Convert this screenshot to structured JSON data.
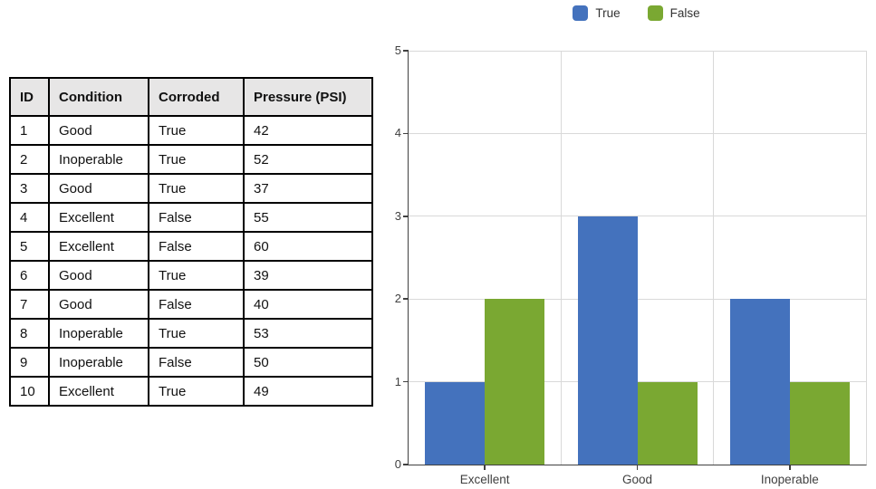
{
  "page": {
    "background": "#ffffff"
  },
  "table": {
    "headers": [
      "ID",
      "Condition",
      "Corroded",
      "Pressure (PSI)"
    ],
    "rows": [
      [
        "1",
        "Good",
        "True",
        "42"
      ],
      [
        "2",
        "Inoperable",
        "True",
        "52"
      ],
      [
        "3",
        "Good",
        "True",
        "37"
      ],
      [
        "4",
        "Excellent",
        "False",
        "55"
      ],
      [
        "5",
        "Excellent",
        "False",
        "60"
      ],
      [
        "6",
        "Good",
        "True",
        "39"
      ],
      [
        "7",
        "Good",
        "False",
        "40"
      ],
      [
        "8",
        "Inoperable",
        "True",
        "53"
      ],
      [
        "9",
        "Inoperable",
        "False",
        "50"
      ],
      [
        "10",
        "Excellent",
        "True",
        "49"
      ]
    ],
    "header_bg": "#E7E6E6",
    "border_color": "#000000"
  },
  "chart_data": {
    "type": "bar",
    "title": "",
    "xlabel": "",
    "ylabel": "",
    "categories": [
      "Excellent",
      "Good",
      "Inoperable"
    ],
    "series": [
      {
        "name": "True",
        "color": "#4472BD",
        "values": [
          1,
          3,
          2
        ]
      },
      {
        "name": "False",
        "color": "#7AA832",
        "values": [
          2,
          1,
          1
        ]
      }
    ],
    "ylim": [
      0,
      5
    ],
    "yticks": [
      0,
      1,
      2,
      3,
      4,
      5
    ],
    "grid": true,
    "legend_position": "top",
    "gridline_color": "#D9D9D9",
    "axis_color": "#404040"
  }
}
